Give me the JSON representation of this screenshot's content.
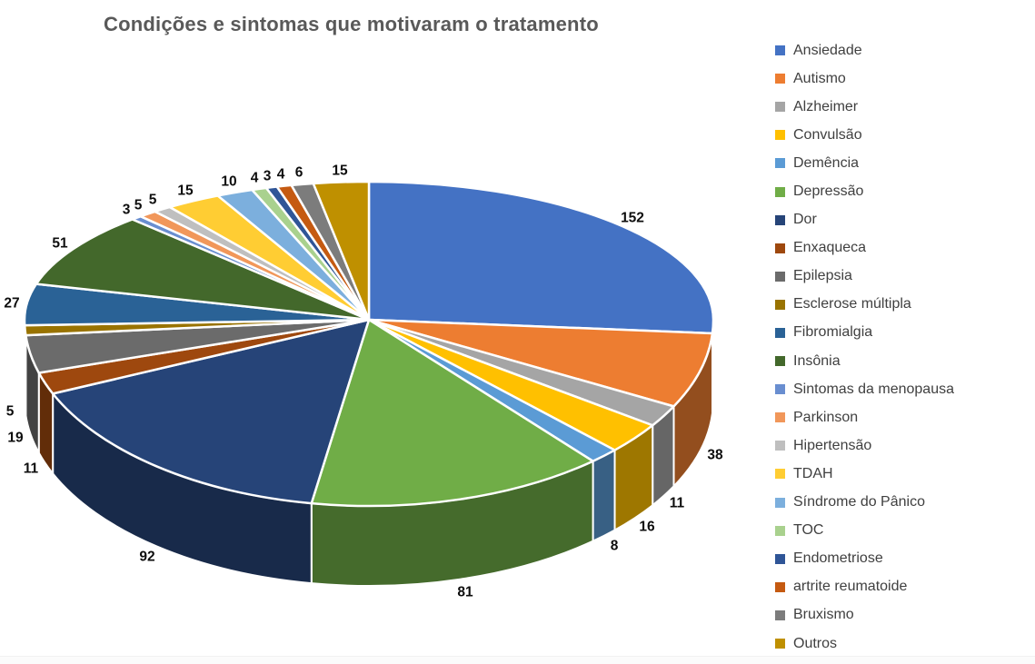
{
  "title": "Condições e sintomas que motivaram o tratamento",
  "background_color": "#FFFFFF",
  "title_color": "#595959",
  "chart_data": {
    "type": "pie",
    "style": "3d-pie",
    "title": "Condições e sintomas que motivaram o tratamento",
    "legend_position": "right",
    "data_labels": "values-outside",
    "start_angle_deg": 0,
    "direction": "clockwise",
    "total": 581,
    "categories": [
      "Ansiedade",
      "Autismo",
      "Alzheimer",
      "Convulsão",
      "Demência",
      "Depressão",
      "Dor",
      "Enxaqueca",
      "Epilepsia",
      "Esclerose múltipla",
      "Fibromialgia",
      "Insônia",
      "Sintomas da menopausa",
      "Parkinson",
      "Hipertensão",
      "TDAH",
      "Síndrome do Pânico",
      "TOC",
      "Endometriose",
      "artrite reumatoide",
      "Bruxismo",
      "Outros"
    ],
    "values": [
      152,
      38,
      11,
      16,
      8,
      81,
      92,
      11,
      19,
      5,
      27,
      51,
      3,
      5,
      5,
      15,
      10,
      4,
      3,
      4,
      6,
      15
    ],
    "colors": [
      "#4472C4",
      "#ED7D31",
      "#A5A5A5",
      "#FFC000",
      "#5B9BD5",
      "#70AD47",
      "#264478",
      "#9E480E",
      "#6B6B6B",
      "#997300",
      "#2A6296",
      "#43682B",
      "#698ED0",
      "#F1975A",
      "#BFBFBF",
      "#FFCD33",
      "#7CAFDD",
      "#A9D18E",
      "#2F5597",
      "#C55A11",
      "#7C7C7C",
      "#BF9000"
    ],
    "label_color": "#0D0D0D"
  }
}
